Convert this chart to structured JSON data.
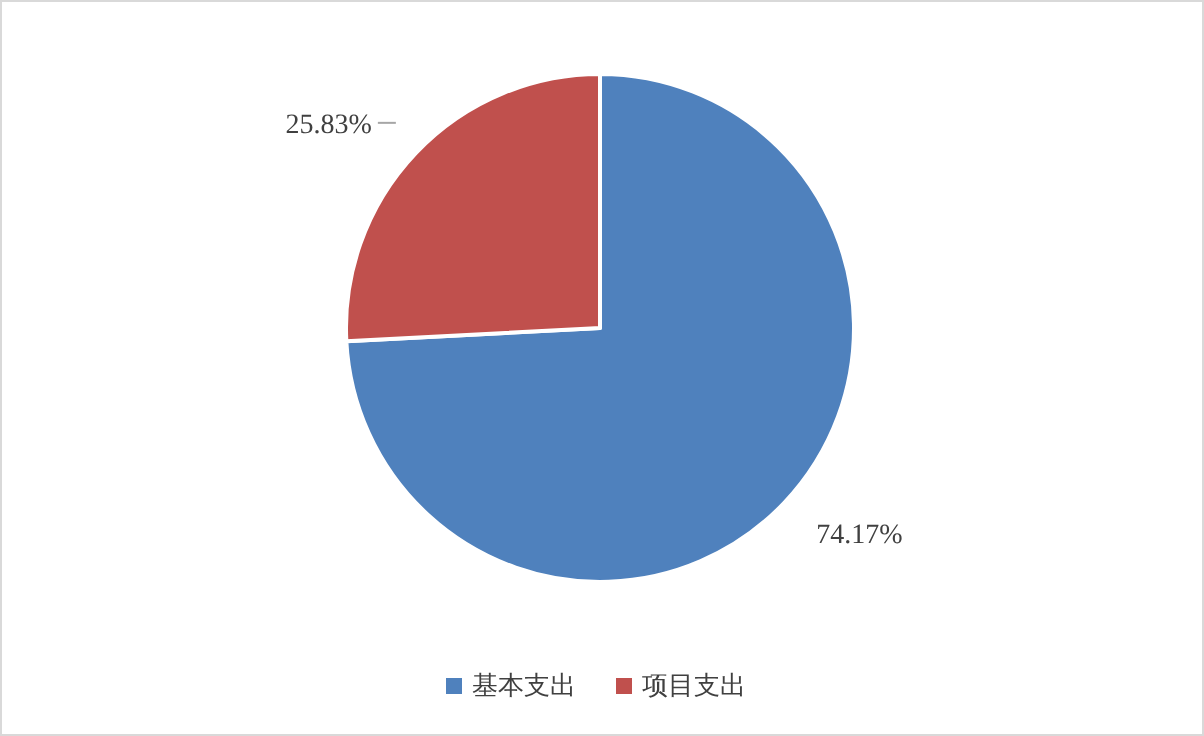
{
  "chart_data": {
    "type": "pie",
    "categories": [
      "基本支出",
      "项目支出"
    ],
    "values": [
      74.17,
      25.83
    ],
    "colors": [
      "#4f81bd",
      "#c0504d"
    ],
    "value_labels": [
      "74.17%",
      "25.83%"
    ],
    "legend": "bottom"
  }
}
